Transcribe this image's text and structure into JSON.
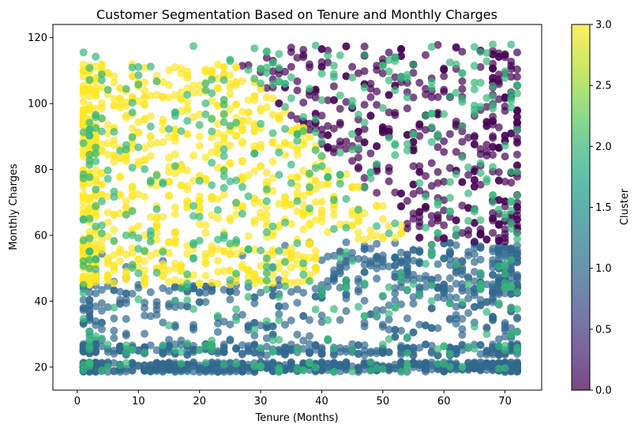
{
  "chart_data": {
    "type": "scatter",
    "title": "Customer Segmentation Based on Tenure and Monthly Charges",
    "xlabel": "Tenure (Months)",
    "ylabel": "Monthly Charges",
    "xlim": [
      -4,
      76
    ],
    "ylim": [
      13,
      124
    ],
    "xticks": [
      0,
      10,
      20,
      30,
      40,
      50,
      60,
      70
    ],
    "yticks": [
      20,
      40,
      60,
      80,
      100,
      120
    ],
    "grid": false,
    "marker_alpha": 0.7,
    "colorbar": {
      "label": "Cluster",
      "range": [
        0,
        3
      ],
      "ticks": [
        0.0,
        0.5,
        1.0,
        1.5,
        2.0,
        2.5,
        3.0
      ],
      "tick_labels": [
        "0.0",
        "0.5",
        "1.0",
        "1.5",
        "2.0",
        "2.5",
        "3.0"
      ],
      "colormap": "viridis"
    },
    "clusters": [
      {
        "value": 0,
        "color": "#440154",
        "x_range": [
          33,
          72
        ],
        "y_range": [
          42,
          118
        ],
        "note_shape": "high tenure, high charges"
      },
      {
        "value": 1,
        "color": "#31688e",
        "x_range": [
          1,
          72
        ],
        "y_range": [
          18,
          56
        ]
      },
      {
        "value": 2,
        "color": "#35b779",
        "x_range": [
          1,
          72
        ],
        "y_range": [
          18,
          118
        ]
      },
      {
        "value": 3,
        "color": "#fde725",
        "x_range": [
          1,
          44
        ],
        "y_range": [
          40,
          113
        ]
      }
    ]
  },
  "colors": {
    "viridis_stops": [
      "#440154",
      "#482878",
      "#3e4989",
      "#31688e",
      "#26828e",
      "#1f9e89",
      "#35b779",
      "#6ece58",
      "#b5de2b",
      "#fde725"
    ]
  }
}
